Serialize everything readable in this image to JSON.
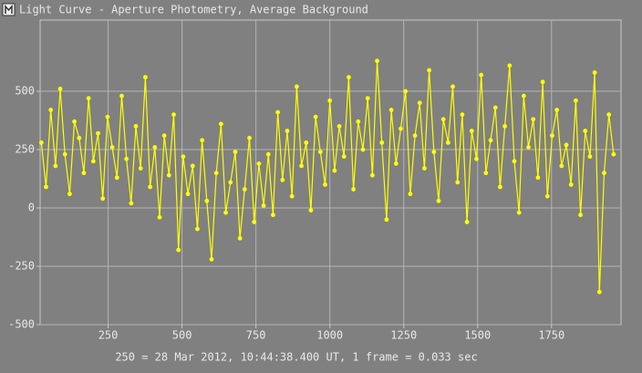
{
  "window_title": "Light Curve - Aperture Photometry, Average Background",
  "chart_data": {
    "type": "line",
    "caption": "250 = 28 Mar 2012, 10:44:38.400 UT, 1 frame = 0.033 sec",
    "color": "#ffff00",
    "grid": true,
    "xlim": [
      20,
      1985
    ],
    "ylim": [
      -500,
      805
    ],
    "xticks": [
      250,
      500,
      750,
      1000,
      1250,
      1500,
      1750
    ],
    "yticks": [
      -500,
      -250,
      0,
      250,
      500
    ],
    "x": [
      24,
      40,
      56,
      72,
      88,
      104,
      120,
      136,
      152,
      168,
      184,
      200,
      216,
      232,
      248,
      264,
      280,
      296,
      312,
      328,
      344,
      360,
      376,
      392,
      408,
      424,
      440,
      456,
      472,
      488,
      504,
      520,
      536,
      552,
      568,
      584,
      600,
      616,
      632,
      648,
      664,
      680,
      696,
      712,
      728,
      744,
      760,
      776,
      792,
      808,
      824,
      840,
      856,
      872,
      888,
      904,
      920,
      936,
      952,
      968,
      984,
      1000,
      1016,
      1032,
      1048,
      1064,
      1080,
      1096,
      1112,
      1128,
      1144,
      1160,
      1176,
      1192,
      1208,
      1224,
      1240,
      1256,
      1272,
      1288,
      1304,
      1320,
      1336,
      1352,
      1368,
      1384,
      1400,
      1416,
      1432,
      1448,
      1464,
      1480,
      1496,
      1512,
      1528,
      1544,
      1560,
      1576,
      1592,
      1608,
      1624,
      1640,
      1656,
      1672,
      1688,
      1704,
      1720,
      1736,
      1752,
      1768,
      1784,
      1800,
      1816,
      1832,
      1848,
      1864,
      1880,
      1896,
      1912,
      1928,
      1944,
      1960
    ],
    "values": [
      280,
      90,
      420,
      180,
      510,
      230,
      60,
      370,
      300,
      150,
      470,
      200,
      320,
      40,
      390,
      260,
      130,
      480,
      210,
      20,
      350,
      170,
      560,
      90,
      260,
      -40,
      310,
      140,
      400,
      -180,
      220,
      60,
      180,
      -90,
      290,
      30,
      -220,
      150,
      360,
      -20,
      110,
      240,
      -130,
      80,
      300,
      -60,
      190,
      10,
      230,
      -30,
      410,
      120,
      330,
      50,
      520,
      180,
      280,
      -10,
      390,
      240,
      100,
      460,
      160,
      350,
      220,
      560,
      80,
      370,
      250,
      470,
      140,
      630,
      280,
      -50,
      420,
      190,
      340,
      500,
      60,
      310,
      450,
      170,
      590,
      240,
      30,
      380,
      280,
      520,
      110,
      400,
      -60,
      330,
      210,
      570,
      150,
      290,
      430,
      90,
      350,
      610,
      200,
      -20,
      480,
      260,
      380,
      130,
      540,
      50,
      310,
      420,
      180,
      270,
      100,
      460,
      -30,
      330,
      220,
      580,
      -360,
      150,
      400,
      230
    ]
  }
}
